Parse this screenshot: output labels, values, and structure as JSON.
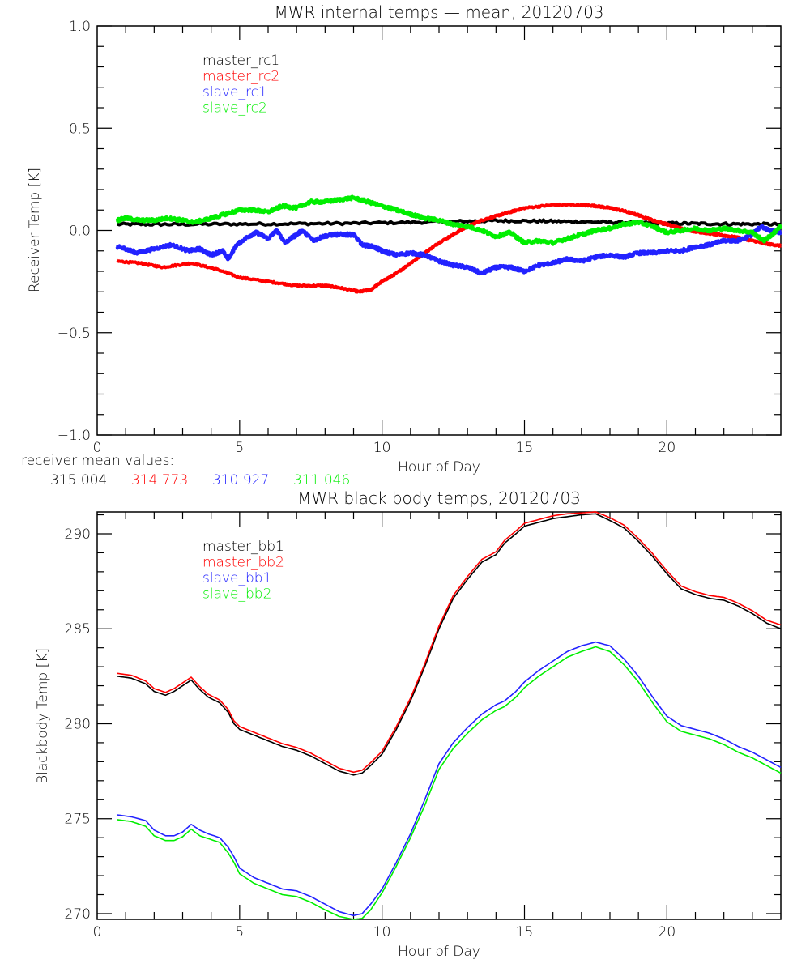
{
  "chart_data": [
    {
      "type": "line",
      "title": "MWR internal temps — mean, 20120703",
      "xlabel": "Hour of Day",
      "ylabel": "Receiver Temp [K]",
      "xlim": [
        0,
        24
      ],
      "ylim": [
        -1.0,
        1.0
      ],
      "xticks": [
        "0",
        "5",
        "10",
        "15",
        "20"
      ],
      "xtick_values": [
        0,
        5,
        10,
        15,
        20
      ],
      "yticks": [
        "-1.0",
        "-0.5",
        "0.0",
        "0.5",
        "1.0"
      ],
      "ytick_values": [
        -1.0,
        -0.5,
        0.0,
        0.5,
        1.0
      ],
      "legend_position": "top-left",
      "series": [
        {
          "name": "master_rc1",
          "color": "#000000",
          "noise": 0.006,
          "x": [
            0.7,
            3,
            6,
            9,
            12,
            14,
            16,
            18,
            20,
            22,
            24
          ],
          "y": [
            0.03,
            0.03,
            0.032,
            0.035,
            0.042,
            0.048,
            0.045,
            0.04,
            0.035,
            0.032,
            0.03
          ]
        },
        {
          "name": "master_rc2",
          "color": "#ff0000",
          "noise": 0.004,
          "x": [
            0.7,
            1.5,
            2.3,
            3.3,
            4.2,
            5,
            6,
            7,
            8,
            8.5,
            9.2,
            9.6,
            10,
            10.5,
            11,
            11.5,
            12,
            12.5,
            13,
            13.5,
            14,
            14.5,
            15,
            16,
            17,
            17.5,
            18,
            18.5,
            19,
            19.5,
            20,
            20.5,
            21,
            21.5,
            22,
            22.5,
            23,
            23.5,
            24
          ],
          "y": [
            -0.15,
            -0.16,
            -0.18,
            -0.16,
            -0.19,
            -0.23,
            -0.25,
            -0.27,
            -0.27,
            -0.28,
            -0.3,
            -0.29,
            -0.25,
            -0.21,
            -0.16,
            -0.11,
            -0.06,
            -0.02,
            0.02,
            0.05,
            0.07,
            0.09,
            0.11,
            0.125,
            0.125,
            0.12,
            0.11,
            0.095,
            0.075,
            0.05,
            0.03,
            0.01,
            -0.005,
            -0.015,
            -0.025,
            -0.035,
            -0.05,
            -0.065,
            -0.075
          ]
        },
        {
          "name": "slave_rc1",
          "color": "#2222ff",
          "noise": 0.008,
          "x": [
            0.7,
            1.0,
            1.4,
            2.0,
            2.6,
            3.2,
            3.6,
            4.0,
            4.4,
            4.6,
            4.9,
            5.3,
            5.6,
            6.0,
            6.3,
            6.6,
            6.9,
            7.2,
            7.6,
            7.9,
            8.3,
            8.7,
            9.0,
            9.3,
            9.7,
            10.0,
            10.5,
            11.0,
            11.5,
            12.0,
            12.5,
            13.0,
            13.5,
            14.0,
            14.5,
            15.0,
            15.5,
            16.0,
            16.5,
            17.0,
            17.5,
            18.0,
            18.5,
            19.0,
            19.5,
            20.0,
            20.5,
            21.0,
            21.5,
            22.0,
            22.5,
            23.0,
            23.3,
            23.6,
            24.0
          ],
          "y": [
            -0.08,
            -0.09,
            -0.11,
            -0.09,
            -0.07,
            -0.1,
            -0.09,
            -0.12,
            -0.1,
            -0.14,
            -0.07,
            -0.03,
            -0.01,
            -0.04,
            0.0,
            -0.06,
            -0.03,
            0.0,
            -0.05,
            -0.03,
            -0.02,
            -0.02,
            -0.02,
            -0.07,
            -0.08,
            -0.1,
            -0.12,
            -0.11,
            -0.12,
            -0.15,
            -0.17,
            -0.18,
            -0.21,
            -0.18,
            -0.18,
            -0.2,
            -0.17,
            -0.16,
            -0.14,
            -0.15,
            -0.13,
            -0.12,
            -0.13,
            -0.11,
            -0.11,
            -0.1,
            -0.1,
            -0.08,
            -0.07,
            -0.05,
            -0.05,
            -0.02,
            0.02,
            0.0,
            -0.01
          ]
        },
        {
          "name": "slave_rc2",
          "color": "#00ee00",
          "noise": 0.008,
          "x": [
            0.7,
            1.0,
            1.5,
            2.0,
            2.5,
            3.0,
            3.4,
            4.0,
            4.5,
            5.0,
            5.5,
            6.0,
            6.5,
            7.0,
            7.5,
            8.0,
            8.5,
            9.0,
            9.5,
            10.0,
            10.5,
            11.0,
            11.5,
            12.0,
            12.5,
            13.0,
            13.5,
            14.0,
            14.5,
            15.0,
            15.5,
            16.0,
            16.5,
            17.0,
            17.5,
            18.0,
            18.5,
            19.0,
            19.5,
            20.0,
            20.5,
            21.0,
            21.5,
            22.0,
            22.5,
            23.0,
            23.4,
            23.7,
            24.0
          ],
          "y": [
            0.05,
            0.06,
            0.05,
            0.05,
            0.06,
            0.05,
            0.04,
            0.06,
            0.08,
            0.1,
            0.1,
            0.09,
            0.12,
            0.11,
            0.14,
            0.14,
            0.15,
            0.16,
            0.14,
            0.12,
            0.1,
            0.08,
            0.06,
            0.05,
            0.03,
            0.02,
            0.0,
            -0.03,
            -0.01,
            -0.06,
            -0.05,
            -0.06,
            -0.04,
            -0.02,
            0.0,
            0.01,
            0.03,
            0.04,
            0.02,
            -0.01,
            0.0,
            0.01,
            0.0,
            0.01,
            0.0,
            -0.01,
            -0.05,
            -0.02,
            0.02
          ]
        }
      ],
      "annotation": {
        "label": "receiver mean values:",
        "values": [
          {
            "text": "315.004",
            "color": "#000000"
          },
          {
            "text": "314.773",
            "color": "#ff0000"
          },
          {
            "text": "310.927",
            "color": "#2222ff"
          },
          {
            "text": "311.046",
            "color": "#00ee00"
          }
        ]
      }
    },
    {
      "type": "line",
      "title": "MWR black body temps, 20120703",
      "xlabel": "Hour of Day",
      "ylabel": "Blackbody Temp [K]",
      "xlim": [
        0,
        24
      ],
      "ylim": [
        269.7,
        291.15
      ],
      "xticks": [
        "0",
        "5",
        "10",
        "15",
        "20"
      ],
      "xtick_values": [
        0,
        5,
        10,
        15,
        20
      ],
      "yticks": [
        "270",
        "275",
        "280",
        "285",
        "290"
      ],
      "ytick_values": [
        270,
        275,
        280,
        285,
        290
      ],
      "legend_position": "top-left",
      "series": [
        {
          "name": "master_bb1",
          "color": "#000000",
          "x": [
            0.7,
            1.2,
            1.7,
            2.0,
            2.4,
            2.7,
            3.0,
            3.3,
            3.6,
            3.9,
            4.3,
            4.6,
            4.8,
            5.0,
            5.5,
            6.0,
            6.5,
            7.0,
            7.5,
            8.0,
            8.5,
            9.0,
            9.3,
            9.6,
            10.0,
            10.5,
            11.0,
            11.5,
            12.0,
            12.5,
            13.0,
            13.5,
            14.0,
            14.3,
            14.7,
            15.0,
            15.5,
            16.0,
            16.5,
            17.0,
            17.5,
            18.0,
            18.5,
            19.0,
            19.5,
            20.0,
            20.5,
            21.0,
            21.5,
            22.0,
            22.5,
            23.0,
            23.5,
            24.0
          ],
          "y": [
            282.5,
            282.4,
            282.1,
            281.7,
            281.5,
            281.7,
            282.0,
            282.3,
            281.8,
            281.4,
            281.1,
            280.6,
            280.0,
            279.7,
            279.4,
            279.1,
            278.8,
            278.6,
            278.3,
            277.9,
            277.5,
            277.3,
            277.4,
            277.8,
            278.4,
            279.7,
            281.2,
            283.0,
            285.0,
            286.6,
            287.6,
            288.5,
            288.9,
            289.5,
            290.0,
            290.4,
            290.6,
            290.8,
            290.9,
            291.0,
            291.05,
            290.7,
            290.3,
            289.6,
            288.8,
            287.9,
            287.1,
            286.8,
            286.6,
            286.5,
            286.2,
            285.8,
            285.3,
            285.0
          ]
        },
        {
          "name": "master_bb2",
          "color": "#ff0000",
          "x": [
            0.7,
            1.2,
            1.7,
            2.0,
            2.4,
            2.7,
            3.0,
            3.3,
            3.6,
            3.9,
            4.3,
            4.6,
            4.8,
            5.0,
            5.5,
            6.0,
            6.5,
            7.0,
            7.5,
            8.0,
            8.5,
            9.0,
            9.3,
            9.6,
            10.0,
            10.5,
            11.0,
            11.5,
            12.0,
            12.5,
            13.0,
            13.5,
            14.0,
            14.3,
            14.7,
            15.0,
            15.5,
            16.0,
            16.5,
            17.0,
            17.5,
            18.0,
            18.5,
            19.0,
            19.5,
            20.0,
            20.5,
            21.0,
            21.5,
            22.0,
            22.5,
            23.0,
            23.5,
            24.0
          ],
          "y": [
            282.65,
            282.55,
            282.25,
            281.85,
            281.65,
            281.85,
            282.15,
            282.45,
            281.95,
            281.55,
            281.25,
            280.75,
            280.15,
            279.85,
            279.55,
            279.25,
            278.95,
            278.75,
            278.45,
            278.05,
            277.65,
            277.45,
            277.55,
            277.95,
            278.55,
            279.85,
            281.35,
            283.15,
            285.15,
            286.75,
            287.75,
            288.65,
            289.05,
            289.65,
            290.15,
            290.55,
            290.75,
            290.95,
            291.05,
            291.1,
            291.15,
            290.85,
            290.45,
            289.75,
            288.95,
            288.05,
            287.25,
            286.95,
            286.75,
            286.65,
            286.35,
            285.95,
            285.45,
            285.2
          ]
        },
        {
          "name": "slave_bb1",
          "color": "#2222ff",
          "x": [
            0.7,
            1.2,
            1.7,
            2.0,
            2.4,
            2.7,
            3.0,
            3.3,
            3.6,
            3.9,
            4.3,
            4.6,
            4.8,
            5.0,
            5.5,
            6.0,
            6.5,
            7.0,
            7.5,
            8.0,
            8.5,
            9.0,
            9.3,
            9.6,
            10.0,
            10.5,
            11.0,
            11.5,
            12.0,
            12.5,
            13.0,
            13.5,
            14.0,
            14.3,
            14.7,
            15.0,
            15.5,
            16.0,
            16.5,
            17.0,
            17.5,
            18.0,
            18.5,
            19.0,
            19.5,
            20.0,
            20.5,
            21.0,
            21.5,
            22.0,
            22.5,
            23.0,
            23.5,
            24.0
          ],
          "y": [
            275.2,
            275.1,
            274.9,
            274.4,
            274.1,
            274.1,
            274.3,
            274.7,
            274.4,
            274.2,
            274.0,
            273.5,
            273.0,
            272.4,
            271.9,
            271.6,
            271.3,
            271.2,
            270.9,
            270.5,
            270.1,
            269.9,
            270.0,
            270.5,
            271.3,
            272.7,
            274.2,
            276.0,
            277.9,
            279.0,
            279.8,
            280.5,
            281.0,
            281.2,
            281.7,
            282.2,
            282.8,
            283.3,
            283.8,
            284.1,
            284.3,
            284.1,
            283.4,
            282.5,
            281.4,
            280.4,
            279.9,
            279.7,
            279.5,
            279.2,
            278.8,
            278.5,
            278.1,
            277.7
          ]
        },
        {
          "name": "slave_bb2",
          "color": "#00ee00",
          "x": [
            0.7,
            1.2,
            1.7,
            2.0,
            2.4,
            2.7,
            3.0,
            3.3,
            3.6,
            3.9,
            4.3,
            4.6,
            4.8,
            5.0,
            5.5,
            6.0,
            6.5,
            7.0,
            7.5,
            8.0,
            8.5,
            9.0,
            9.3,
            9.6,
            10.0,
            10.5,
            11.0,
            11.5,
            12.0,
            12.5,
            13.0,
            13.5,
            14.0,
            14.3,
            14.7,
            15.0,
            15.5,
            16.0,
            16.5,
            17.0,
            17.5,
            18.0,
            18.5,
            19.0,
            19.5,
            20.0,
            20.5,
            21.0,
            21.5,
            22.0,
            22.5,
            23.0,
            23.5,
            24.0
          ],
          "y": [
            274.95,
            274.85,
            274.6,
            274.1,
            273.85,
            273.85,
            274.05,
            274.45,
            274.1,
            273.95,
            273.75,
            273.2,
            272.7,
            272.1,
            271.6,
            271.3,
            271.0,
            270.9,
            270.6,
            270.2,
            269.85,
            269.7,
            269.75,
            270.2,
            271.1,
            272.5,
            274.0,
            275.7,
            277.6,
            278.7,
            279.5,
            280.2,
            280.7,
            280.9,
            281.4,
            281.9,
            282.5,
            283.0,
            283.5,
            283.8,
            284.05,
            283.8,
            283.1,
            282.2,
            281.1,
            280.1,
            279.6,
            279.4,
            279.2,
            278.9,
            278.5,
            278.2,
            277.8,
            277.4
          ]
        }
      ]
    }
  ]
}
